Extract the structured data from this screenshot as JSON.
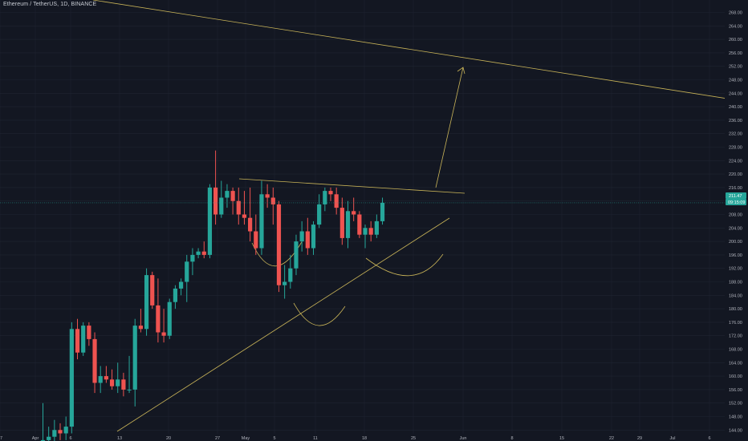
{
  "header": {
    "title": "Ethereum / TetherUS, 1D, BINANCE"
  },
  "colors": {
    "background": "#131722",
    "grid": "#1f2431",
    "up": "#26a69a",
    "down": "#ef5350",
    "drawing": "#c9b458",
    "axis_text": "#b2b5be",
    "price_line": "#26a69a"
  },
  "chart_data": {
    "type": "candlestick",
    "symbol": "Ethereum / TetherUS",
    "interval": "1D",
    "exchange": "BINANCE",
    "ylim": [
      144,
      270
    ],
    "y_ticks": [
      "268.00",
      "264.00",
      "260.00",
      "256.00",
      "252.00",
      "248.00",
      "244.00",
      "240.00",
      "236.00",
      "232.00",
      "228.00",
      "224.00",
      "220.00",
      "216.00",
      "212.00",
      "208.00",
      "204.00",
      "200.00",
      "196.00",
      "192.00",
      "188.00",
      "184.00",
      "180.00",
      "176.00",
      "172.00",
      "168.00",
      "164.00",
      "160.00",
      "156.00",
      "152.00",
      "148.00",
      "144.00"
    ],
    "x_ticks": [
      "7",
      "Apr",
      "6",
      "13",
      "20",
      "27",
      "May",
      "5",
      "11",
      "18",
      "25",
      "Jun",
      "8",
      "15",
      "22",
      "29",
      "Jul",
      "6"
    ],
    "last_price": "211.47",
    "countdown": "09:15:09",
    "candles": [
      {
        "o": 140,
        "h": 152,
        "l": 139,
        "c": 141
      },
      {
        "o": 141,
        "h": 145,
        "l": 139,
        "c": 142
      },
      {
        "o": 142,
        "h": 147,
        "l": 140,
        "c": 144
      },
      {
        "o": 144,
        "h": 146,
        "l": 141,
        "c": 143
      },
      {
        "o": 143,
        "h": 148,
        "l": 141,
        "c": 145
      },
      {
        "o": 145,
        "h": 176,
        "l": 143,
        "c": 174
      },
      {
        "o": 174,
        "h": 177,
        "l": 165,
        "c": 167
      },
      {
        "o": 167,
        "h": 176,
        "l": 166,
        "c": 175
      },
      {
        "o": 175,
        "h": 176,
        "l": 169,
        "c": 171
      },
      {
        "o": 171,
        "h": 173,
        "l": 155,
        "c": 158
      },
      {
        "o": 158,
        "h": 163,
        "l": 155,
        "c": 160
      },
      {
        "o": 160,
        "h": 163,
        "l": 158,
        "c": 159
      },
      {
        "o": 159,
        "h": 162,
        "l": 156,
        "c": 157
      },
      {
        "o": 157,
        "h": 164,
        "l": 155,
        "c": 159
      },
      {
        "o": 159,
        "h": 161,
        "l": 154,
        "c": 156
      },
      {
        "o": 156,
        "h": 166,
        "l": 155,
        "c": 156
      },
      {
        "o": 156,
        "h": 177,
        "l": 151,
        "c": 175
      },
      {
        "o": 175,
        "h": 180,
        "l": 173,
        "c": 174
      },
      {
        "o": 174,
        "h": 192,
        "l": 172,
        "c": 190
      },
      {
        "o": 190,
        "h": 191,
        "l": 180,
        "c": 181
      },
      {
        "o": 181,
        "h": 189,
        "l": 170,
        "c": 173
      },
      {
        "o": 173,
        "h": 180,
        "l": 170,
        "c": 172
      },
      {
        "o": 172,
        "h": 183,
        "l": 171,
        "c": 182
      },
      {
        "o": 182,
        "h": 187,
        "l": 180,
        "c": 186
      },
      {
        "o": 186,
        "h": 189,
        "l": 184,
        "c": 188
      },
      {
        "o": 188,
        "h": 196,
        "l": 182,
        "c": 194
      },
      {
        "o": 194,
        "h": 198,
        "l": 190,
        "c": 196
      },
      {
        "o": 196,
        "h": 198,
        "l": 195,
        "c": 197
      },
      {
        "o": 197,
        "h": 200,
        "l": 195,
        "c": 196
      },
      {
        "o": 196,
        "h": 217,
        "l": 195,
        "c": 216
      },
      {
        "o": 216,
        "h": 227,
        "l": 205,
        "c": 208
      },
      {
        "o": 208,
        "h": 218,
        "l": 207,
        "c": 213
      },
      {
        "o": 213,
        "h": 217,
        "l": 210,
        "c": 215
      },
      {
        "o": 215,
        "h": 216,
        "l": 208,
        "c": 212
      },
      {
        "o": 212,
        "h": 216,
        "l": 205,
        "c": 208
      },
      {
        "o": 208,
        "h": 215,
        "l": 205,
        "c": 207
      },
      {
        "o": 207,
        "h": 216,
        "l": 200,
        "c": 203
      },
      {
        "o": 203,
        "h": 208,
        "l": 196,
        "c": 198
      },
      {
        "o": 198,
        "h": 218,
        "l": 196,
        "c": 214
      },
      {
        "o": 214,
        "h": 217,
        "l": 210,
        "c": 213
      },
      {
        "o": 213,
        "h": 216,
        "l": 205,
        "c": 211
      },
      {
        "o": 211,
        "h": 212,
        "l": 185,
        "c": 187
      },
      {
        "o": 187,
        "h": 193,
        "l": 183,
        "c": 188
      },
      {
        "o": 188,
        "h": 196,
        "l": 186,
        "c": 192
      },
      {
        "o": 192,
        "h": 202,
        "l": 190,
        "c": 200
      },
      {
        "o": 200,
        "h": 206,
        "l": 197,
        "c": 203
      },
      {
        "o": 203,
        "h": 207,
        "l": 196,
        "c": 198
      },
      {
        "o": 198,
        "h": 206,
        "l": 196,
        "c": 205
      },
      {
        "o": 205,
        "h": 214,
        "l": 204,
        "c": 211
      },
      {
        "o": 211,
        "h": 216,
        "l": 209,
        "c": 215
      },
      {
        "o": 215,
        "h": 216,
        "l": 212,
        "c": 214
      },
      {
        "o": 214,
        "h": 216,
        "l": 208,
        "c": 210
      },
      {
        "o": 210,
        "h": 213,
        "l": 199,
        "c": 201
      },
      {
        "o": 201,
        "h": 212,
        "l": 198,
        "c": 209
      },
      {
        "o": 209,
        "h": 213,
        "l": 206,
        "c": 208
      },
      {
        "o": 208,
        "h": 209,
        "l": 201,
        "c": 202
      },
      {
        "o": 202,
        "h": 205,
        "l": 198,
        "c": 204
      },
      {
        "o": 204,
        "h": 206,
        "l": 200,
        "c": 202
      },
      {
        "o": 202,
        "h": 208,
        "l": 201,
        "c": 206
      },
      {
        "o": 206,
        "h": 213,
        "l": 205,
        "c": 211.47
      }
    ]
  }
}
